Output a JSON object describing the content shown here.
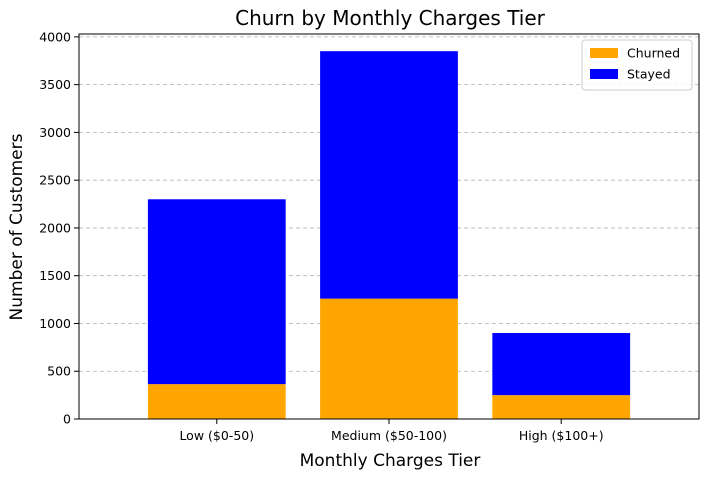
{
  "chart_data": {
    "type": "bar",
    "stacked": true,
    "title": "Churn by Monthly Charges Tier",
    "xlabel": "Monthly Charges Tier",
    "ylabel": "Number of Customers",
    "categories": [
      "Low ($0-50)",
      "Medium ($50-100)",
      "High ($100+)"
    ],
    "series": [
      {
        "name": "Churned",
        "values": [
          365,
          1260,
          250
        ],
        "color": "#FFA500"
      },
      {
        "name": "Stayed",
        "values": [
          1935,
          2590,
          650
        ],
        "color": "#0000FF"
      }
    ],
    "ylim": [
      0,
      4030
    ],
    "yticks": [
      0,
      500,
      1000,
      1500,
      2000,
      2500,
      3000,
      3500,
      4000
    ],
    "grid": {
      "axis": "y",
      "style": "dashed"
    },
    "legend": "top-right"
  }
}
